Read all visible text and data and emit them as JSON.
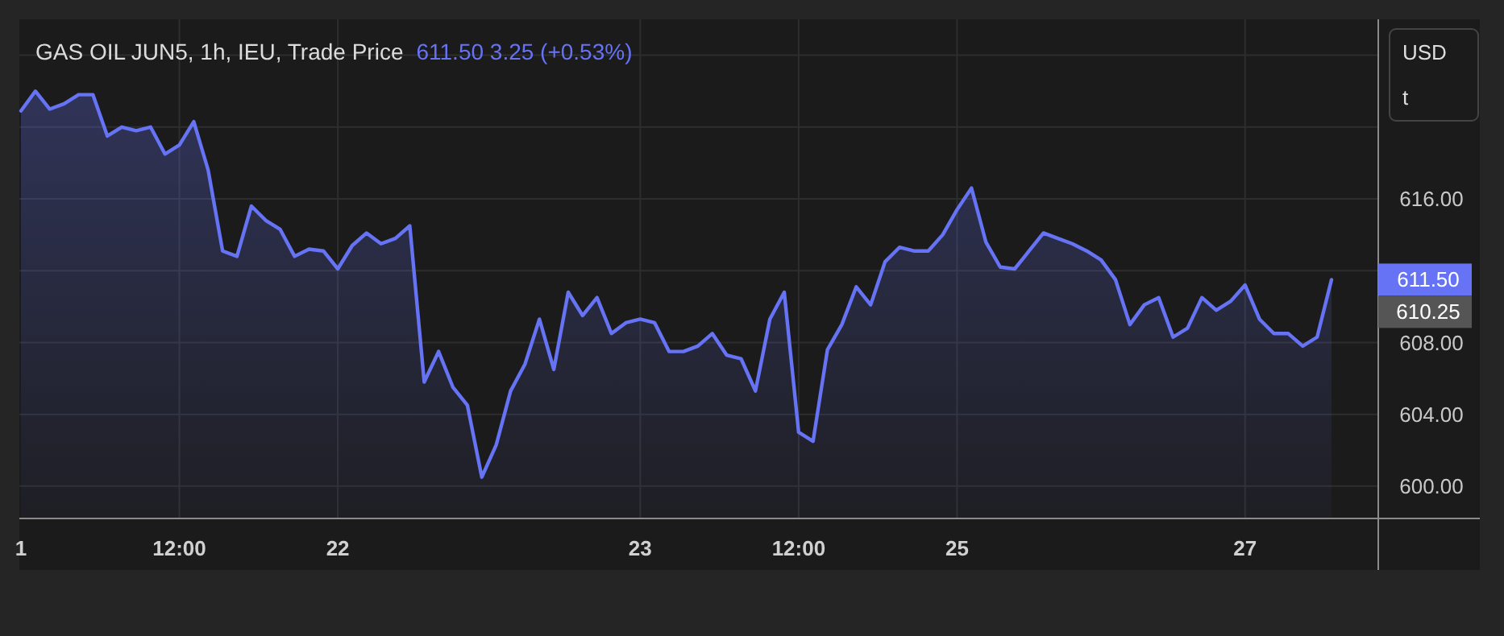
{
  "chart_data": {
    "type": "area",
    "title": "GAS OIL JUN5, 1h, IEU, Trade Price",
    "subtitle": "611.50  3.25 (+0.53%)",
    "categories": [
      "1",
      null,
      null,
      null,
      null,
      null,
      null,
      null,
      null,
      null,
      null,
      "12:00",
      null,
      null,
      null,
      null,
      null,
      null,
      null,
      null,
      null,
      null,
      "22",
      null,
      null,
      null,
      null,
      null,
      null,
      null,
      null,
      null,
      null,
      null,
      null,
      null,
      null,
      null,
      null,
      null,
      null,
      null,
      null,
      "23",
      null,
      null,
      null,
      null,
      null,
      null,
      null,
      null,
      null,
      null,
      "12:00",
      null,
      null,
      null,
      null,
      null,
      null,
      null,
      null,
      null,
      null,
      "25",
      null,
      null,
      null,
      null,
      null,
      null,
      null,
      null,
      null,
      null,
      null,
      null,
      null,
      null,
      null,
      null,
      null,
      null,
      null,
      "27",
      null,
      null,
      null,
      null,
      null,
      null
    ],
    "series": [
      {
        "color": "#6673f5",
        "values": [
          620.9,
          622.0,
          621.0,
          621.3,
          621.8,
          621.8,
          619.5,
          620.0,
          619.8,
          620.0,
          618.5,
          619.0,
          620.3,
          617.6,
          613.1,
          612.8,
          615.6,
          614.8,
          614.3,
          612.8,
          613.2,
          613.1,
          612.1,
          613.4,
          614.1,
          613.5,
          613.8,
          614.5,
          605.8,
          607.5,
          605.5,
          604.5,
          600.5,
          602.3,
          605.3,
          606.8,
          609.3,
          606.5,
          610.8,
          609.5,
          610.5,
          608.5,
          609.1,
          609.3,
          609.1,
          607.5,
          607.5,
          607.8,
          608.5,
          607.3,
          607.1,
          605.3,
          609.3,
          610.8,
          603.0,
          602.5,
          607.6,
          609.0,
          611.1,
          610.1,
          612.5,
          613.3,
          613.1,
          613.1,
          614.0,
          615.4,
          616.6,
          613.6,
          612.2,
          612.1,
          613.1,
          614.1,
          613.8,
          613.5,
          613.1,
          612.6,
          611.5,
          609.0,
          610.1,
          610.5,
          608.3,
          608.8,
          610.5,
          609.8,
          610.3,
          611.2,
          609.3,
          608.5,
          608.5,
          607.8,
          608.3,
          611.5
        ]
      }
    ],
    "ylim": [
      598.2,
      626
    ],
    "yticks": [
      {
        "value": 600,
        "label": "600.00"
      },
      {
        "value": 604,
        "label": "604.00"
      },
      {
        "value": 608,
        "label": "608.00"
      },
      {
        "value": 612,
        "label": null
      },
      {
        "value": 616,
        "label": "616.00"
      },
      {
        "value": 620,
        "label": null
      },
      {
        "value": 624,
        "label": null
      }
    ],
    "grid": true,
    "marker": "none",
    "line_style": "solid",
    "annotations": [
      "611.50",
      "610.25",
      "USD",
      "t"
    ]
  }
}
